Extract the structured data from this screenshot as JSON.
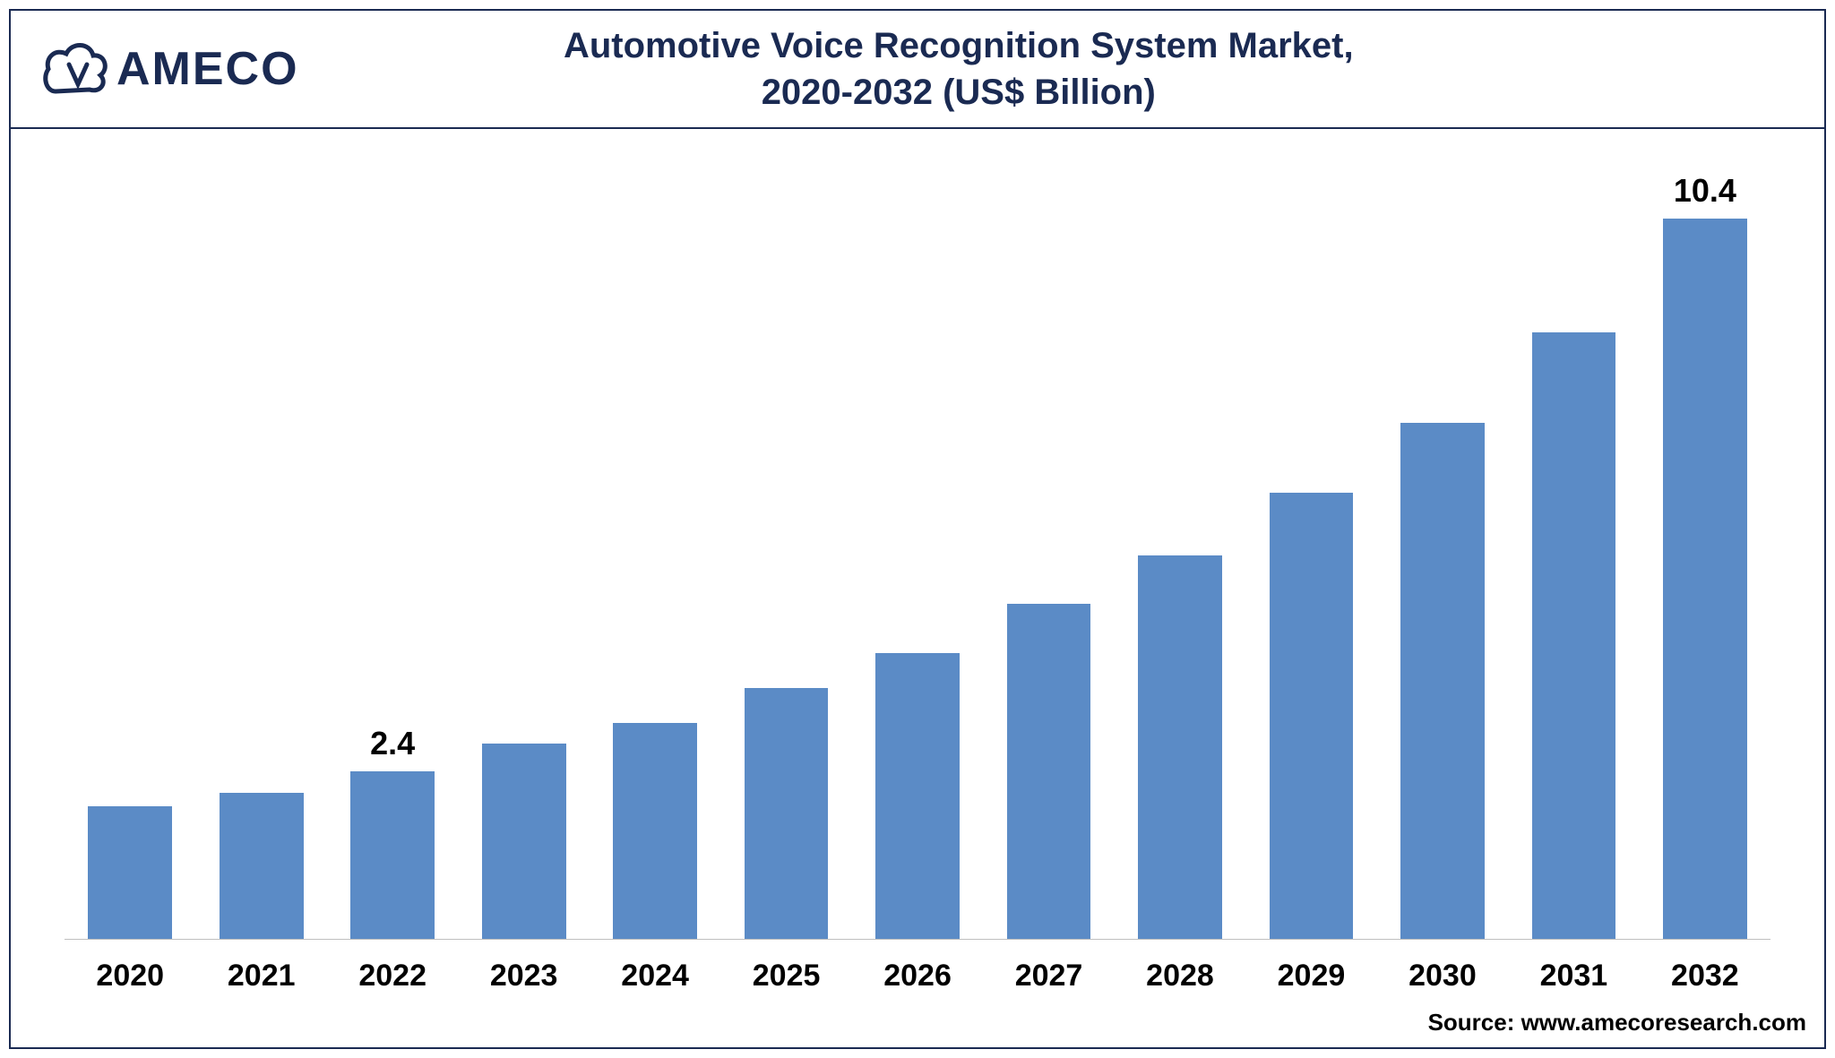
{
  "logo_text": "AMECO",
  "title_line1": "Automotive Voice Recognition System Market,",
  "title_line2": "2020-2032 (US$ Billion)",
  "source": "Source: www.amecoresearch.com",
  "chart": {
    "type": "bar",
    "categories": [
      "2020",
      "2021",
      "2022",
      "2023",
      "2024",
      "2025",
      "2026",
      "2027",
      "2028",
      "2029",
      "2030",
      "2031",
      "2032"
    ],
    "values": [
      1.9,
      2.1,
      2.4,
      2.8,
      3.1,
      3.6,
      4.1,
      4.8,
      5.5,
      6.4,
      7.4,
      8.7,
      10.4
    ],
    "value_labels": [
      "",
      "",
      "2.4",
      "",
      "",
      "",
      "",
      "",
      "",
      "",
      "",
      "",
      "10.4"
    ],
    "bar_color": "#5b8bc6",
    "value_label_color": "#000000",
    "value_label_fontsize": 36,
    "value_label_fontweight": "700",
    "xaxis_label_fontsize": 34,
    "xaxis_label_fontweight": "700",
    "xaxis_label_color": "#000000",
    "ylim": [
      0,
      11
    ],
    "background_color": "#ffffff",
    "border_color": "#1a2a52",
    "axis_line_color": "#bfbfbf",
    "bar_width_ratio": 0.64,
    "title_color": "#1a2a52",
    "title_fontsize": 40,
    "title_fontweight": "700",
    "logo_color": "#1a2a52"
  }
}
